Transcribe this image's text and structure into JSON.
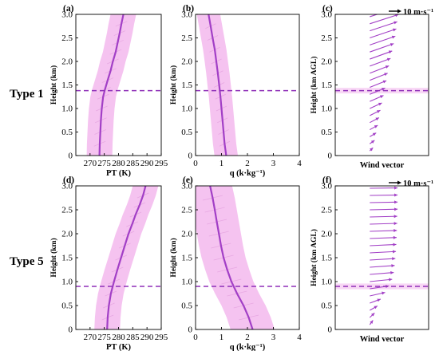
{
  "chart_data": [
    {
      "panel": "(a)",
      "row": "Type 1",
      "type": "line",
      "xlabel": "PT (K)",
      "ylabel": "Height (km)",
      "xlim": [
        265,
        295
      ],
      "ylim": [
        0,
        3
      ],
      "xticks": [
        "270",
        "275",
        "280",
        "285",
        "290",
        "295"
      ],
      "yticks": [
        "0",
        "0.5",
        "1.0",
        "1.5",
        "2.0",
        "2.5",
        "3.0"
      ],
      "mean": {
        "y": [
          0.0,
          0.25,
          0.5,
          0.75,
          1.0,
          1.25,
          1.4,
          1.6,
          1.8,
          2.0,
          2.2,
          2.4,
          2.6,
          2.8,
          3.0
        ],
        "x": [
          273.3,
          273.4,
          273.6,
          273.8,
          274.1,
          274.6,
          275.2,
          276.2,
          277.2,
          278.0,
          279.0,
          279.7,
          280.4,
          281.0,
          281.7
        ]
      },
      "spread": 4.5,
      "dashed_line_height": 1.38,
      "color": "#a23fc6",
      "band_color": "#f4bdee"
    },
    {
      "panel": "(b)",
      "row": "Type 1",
      "type": "line",
      "xlabel": "q (k·kg⁻¹)",
      "ylabel": "Height (km)",
      "xlim": [
        0,
        4
      ],
      "ylim": [
        0,
        3
      ],
      "xticks": [
        "0",
        "1",
        "2",
        "3",
        "4"
      ],
      "yticks": [
        "0",
        "0.5",
        "1.0",
        "1.5",
        "2.0",
        "2.5",
        "3.0"
      ],
      "mean": {
        "y": [
          0.0,
          0.25,
          0.5,
          0.75,
          1.0,
          1.25,
          1.5,
          1.75,
          2.0,
          2.25,
          2.5,
          2.75,
          3.0
        ],
        "x": [
          1.18,
          1.12,
          1.08,
          1.04,
          1.0,
          0.96,
          0.91,
          0.86,
          0.8,
          0.74,
          0.66,
          0.58,
          0.5
        ]
      },
      "spread": 0.45,
      "dashed_line_height": 1.38,
      "color": "#a23fc6",
      "band_color": "#f4bdee"
    },
    {
      "panel": "(c)",
      "row": "Type 1",
      "type": "vector",
      "xlabel": "Wind vector",
      "ylabel": "Height (km AGL)",
      "ylim": [
        0,
        3
      ],
      "yticks": [
        "0",
        "0.5",
        "1.0",
        "1.5",
        "2.0",
        "2.5",
        "3.0"
      ],
      "scale_label": "10 m·s⁻¹",
      "scale_speed": 10,
      "vectors": {
        "y": [
          0.1,
          0.25,
          0.4,
          0.55,
          0.7,
          0.85,
          1.0,
          1.15,
          1.3,
          1.45,
          1.6,
          1.75,
          1.9,
          2.05,
          2.2,
          2.35,
          2.5,
          2.65,
          2.8,
          2.95
        ],
        "u": [
          1.0,
          1.5,
          2.0,
          2.5,
          2.9,
          3.3,
          3.8,
          4.3,
          4.8,
          5.2,
          5.6,
          6.0,
          6.5,
          7.0,
          7.5,
          8.0,
          8.3,
          8.6,
          9.0,
          9.3
        ],
        "v": [
          1.8,
          2.0,
          2.2,
          2.5,
          2.8,
          3.0,
          3.2,
          3.4,
          3.6,
          3.8,
          4.0,
          4.2,
          4.4,
          4.6,
          4.8,
          5.0,
          5.1,
          5.2,
          5.3,
          5.4
        ]
      },
      "dashed_line_height": 1.38,
      "color": "#a23fc6",
      "band_color": "#f4bdee"
    },
    {
      "panel": "(d)",
      "row": "Type 5",
      "type": "line",
      "xlabel": "PT (K)",
      "ylabel": "Height (km)",
      "xlim": [
        265,
        295
      ],
      "ylim": [
        0,
        3
      ],
      "xticks": [
        "270",
        "275",
        "280",
        "285",
        "290",
        "295"
      ],
      "yticks": [
        "0",
        "0.5",
        "1.0",
        "1.5",
        "2.0",
        "2.5",
        "3.0"
      ],
      "mean": {
        "y": [
          0.0,
          0.25,
          0.5,
          0.75,
          1.0,
          1.25,
          1.5,
          1.75,
          2.0,
          2.2,
          2.4,
          2.6,
          2.8,
          3.0
        ],
        "x": [
          276.0,
          276.2,
          276.6,
          277.3,
          278.4,
          279.6,
          280.9,
          282.2,
          283.5,
          284.8,
          286.0,
          287.4,
          288.6,
          289.5
        ]
      },
      "spread": 4.5,
      "dashed_line_height": 0.9,
      "color": "#a23fc6",
      "band_color": "#f4bdee"
    },
    {
      "panel": "(e)",
      "row": "Type 5",
      "type": "line",
      "xlabel": "q (k·kg⁻¹)",
      "ylabel": "Height (km)",
      "xlim": [
        0,
        4
      ],
      "ylim": [
        0,
        3
      ],
      "xticks": [
        "0",
        "1",
        "2",
        "3",
        "4"
      ],
      "yticks": [
        "0",
        "0.5",
        "1.0",
        "1.5",
        "2.0",
        "2.5",
        "3.0"
      ],
      "mean": {
        "y": [
          0.0,
          0.25,
          0.5,
          0.75,
          1.0,
          1.25,
          1.5,
          1.75,
          2.0,
          2.25,
          2.5,
          2.75,
          3.0
        ],
        "x": [
          2.2,
          2.05,
          1.85,
          1.6,
          1.38,
          1.22,
          1.08,
          0.98,
          0.9,
          0.82,
          0.74,
          0.66,
          0.56
        ]
      },
      "spread": 0.85,
      "dashed_line_height": 0.9,
      "color": "#a23fc6",
      "band_color": "#f4bdee"
    },
    {
      "panel": "(f)",
      "row": "Type 5",
      "type": "vector",
      "xlabel": "Wind vector",
      "ylabel": "Height (km AGL)",
      "ylim": [
        0,
        3
      ],
      "yticks": [
        "0",
        "0.5",
        "1.0",
        "1.5",
        "2.0",
        "2.5",
        "3.0"
      ],
      "scale_label": "10 m·s⁻¹",
      "scale_speed": 10,
      "vectors": {
        "y": [
          0.1,
          0.25,
          0.4,
          0.55,
          0.7,
          0.85,
          1.0,
          1.15,
          1.3,
          1.45,
          1.6,
          1.75,
          1.9,
          2.05,
          2.2,
          2.35,
          2.5,
          2.65,
          2.8,
          2.95
        ],
        "u": [
          1.0,
          1.5,
          2.4,
          3.4,
          4.8,
          6.0,
          7.0,
          7.5,
          7.8,
          8.0,
          8.2,
          8.3,
          8.4,
          8.5,
          8.6,
          8.6,
          8.7,
          8.7,
          8.7,
          8.7
        ],
        "v": [
          2.5,
          2.6,
          2.5,
          2.3,
          2.0,
          1.6,
          1.3,
          1.1,
          1.0,
          0.9,
          0.8,
          0.7,
          0.6,
          0.5,
          0.45,
          0.4,
          0.35,
          0.3,
          0.25,
          0.2
        ]
      },
      "dashed_line_height": 0.9,
      "color": "#a23fc6",
      "band_color": "#f4bdee"
    }
  ],
  "rows": [
    {
      "label": "Type 1"
    },
    {
      "label": "Type 5"
    }
  ]
}
